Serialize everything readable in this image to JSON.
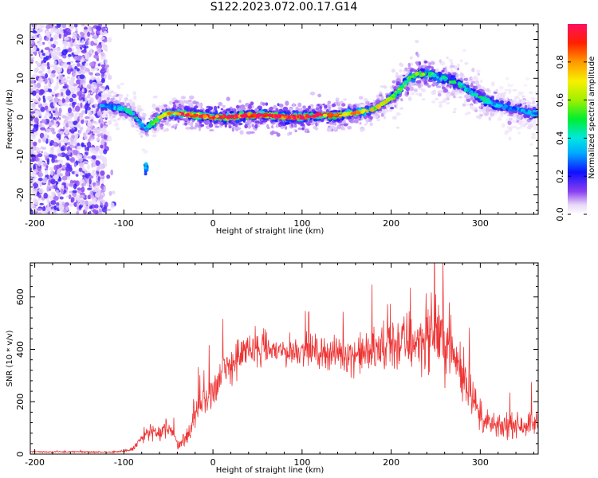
{
  "title": "S122.2023.072.00.17.G14",
  "chart_data": [
    {
      "type": "heatmap",
      "xlabel": "Height of straight line (km)",
      "ylabel": "Frequency (Hz)",
      "xlim": [
        -205,
        365
      ],
      "ylim": [
        -25,
        24
      ],
      "xticks": [
        -200,
        -100,
        0,
        100,
        200,
        300
      ],
      "yticks": [
        -20,
        -10,
        0,
        10,
        20
      ],
      "colorbar": {
        "label": "Normalized spectral amplitude",
        "range": [
          0.0,
          1.0
        ],
        "ticks": [
          0.0,
          0.2,
          0.4,
          0.6,
          0.8
        ]
      },
      "ridge": {
        "x": [
          -120,
          -100,
          -90,
          -80,
          -75,
          -70,
          -60,
          -50,
          -40,
          -20,
          0,
          20,
          40,
          60,
          80,
          100,
          120,
          140,
          160,
          180,
          195,
          210,
          220,
          230,
          245,
          260,
          280,
          300,
          320,
          340,
          360
        ],
        "y": [
          3,
          2,
          1,
          -2,
          -3,
          -2,
          0,
          1,
          1,
          0.5,
          0,
          0,
          0.5,
          0.5,
          0,
          0,
          0.5,
          0.5,
          1,
          2,
          4,
          7,
          10,
          11,
          11,
          10,
          8,
          5,
          3,
          2,
          1
        ],
        "peak": [
          0.3,
          0.4,
          0.4,
          0.35,
          0.35,
          0.5,
          0.6,
          0.7,
          0.8,
          0.9,
          0.95,
          1.0,
          0.95,
          1.0,
          1.0,
          0.95,
          0.9,
          0.85,
          0.7,
          0.65,
          0.6,
          0.55,
          0.5,
          0.5,
          0.5,
          0.45,
          0.4,
          0.4,
          0.35,
          0.3,
          0.3
        ]
      }
    },
    {
      "type": "line",
      "xlabel": "Height of straight line (km)",
      "ylabel": "SNR (10 * v/v)",
      "xlim": [
        -205,
        365
      ],
      "ylim": [
        0,
        730
      ],
      "xticks": [
        -200,
        -100,
        0,
        100,
        200,
        300
      ],
      "yticks": [
        0,
        200,
        400,
        600
      ],
      "color": "#ee3333",
      "series": [
        {
          "x": [
            -205,
            -180,
            -150,
            -120,
            -100,
            -90,
            -80,
            -70,
            -60,
            -50,
            -40,
            -30,
            -20,
            -10,
            0,
            10,
            20,
            30,
            40,
            60,
            80,
            100,
            120,
            140,
            160,
            180,
            190,
            200,
            220,
            240,
            250,
            260,
            270,
            280,
            290,
            300,
            320,
            340,
            365
          ],
          "values": [
            10,
            8,
            9,
            8,
            10,
            20,
            60,
            90,
            70,
            110,
            40,
            60,
            150,
            200,
            250,
            300,
            340,
            380,
            390,
            400,
            390,
            400,
            390,
            385,
            380,
            390,
            400,
            420,
            430,
            440,
            480,
            430,
            380,
            300,
            250,
            130,
            100,
            110,
            120
          ],
          "spread": [
            4,
            4,
            4,
            4,
            6,
            10,
            40,
            50,
            40,
            60,
            30,
            40,
            70,
            90,
            100,
            110,
            110,
            100,
            90,
            80,
            80,
            80,
            80,
            90,
            100,
            120,
            140,
            150,
            160,
            170,
            190,
            180,
            160,
            130,
            110,
            60,
            60,
            60,
            60
          ]
        }
      ]
    }
  ]
}
